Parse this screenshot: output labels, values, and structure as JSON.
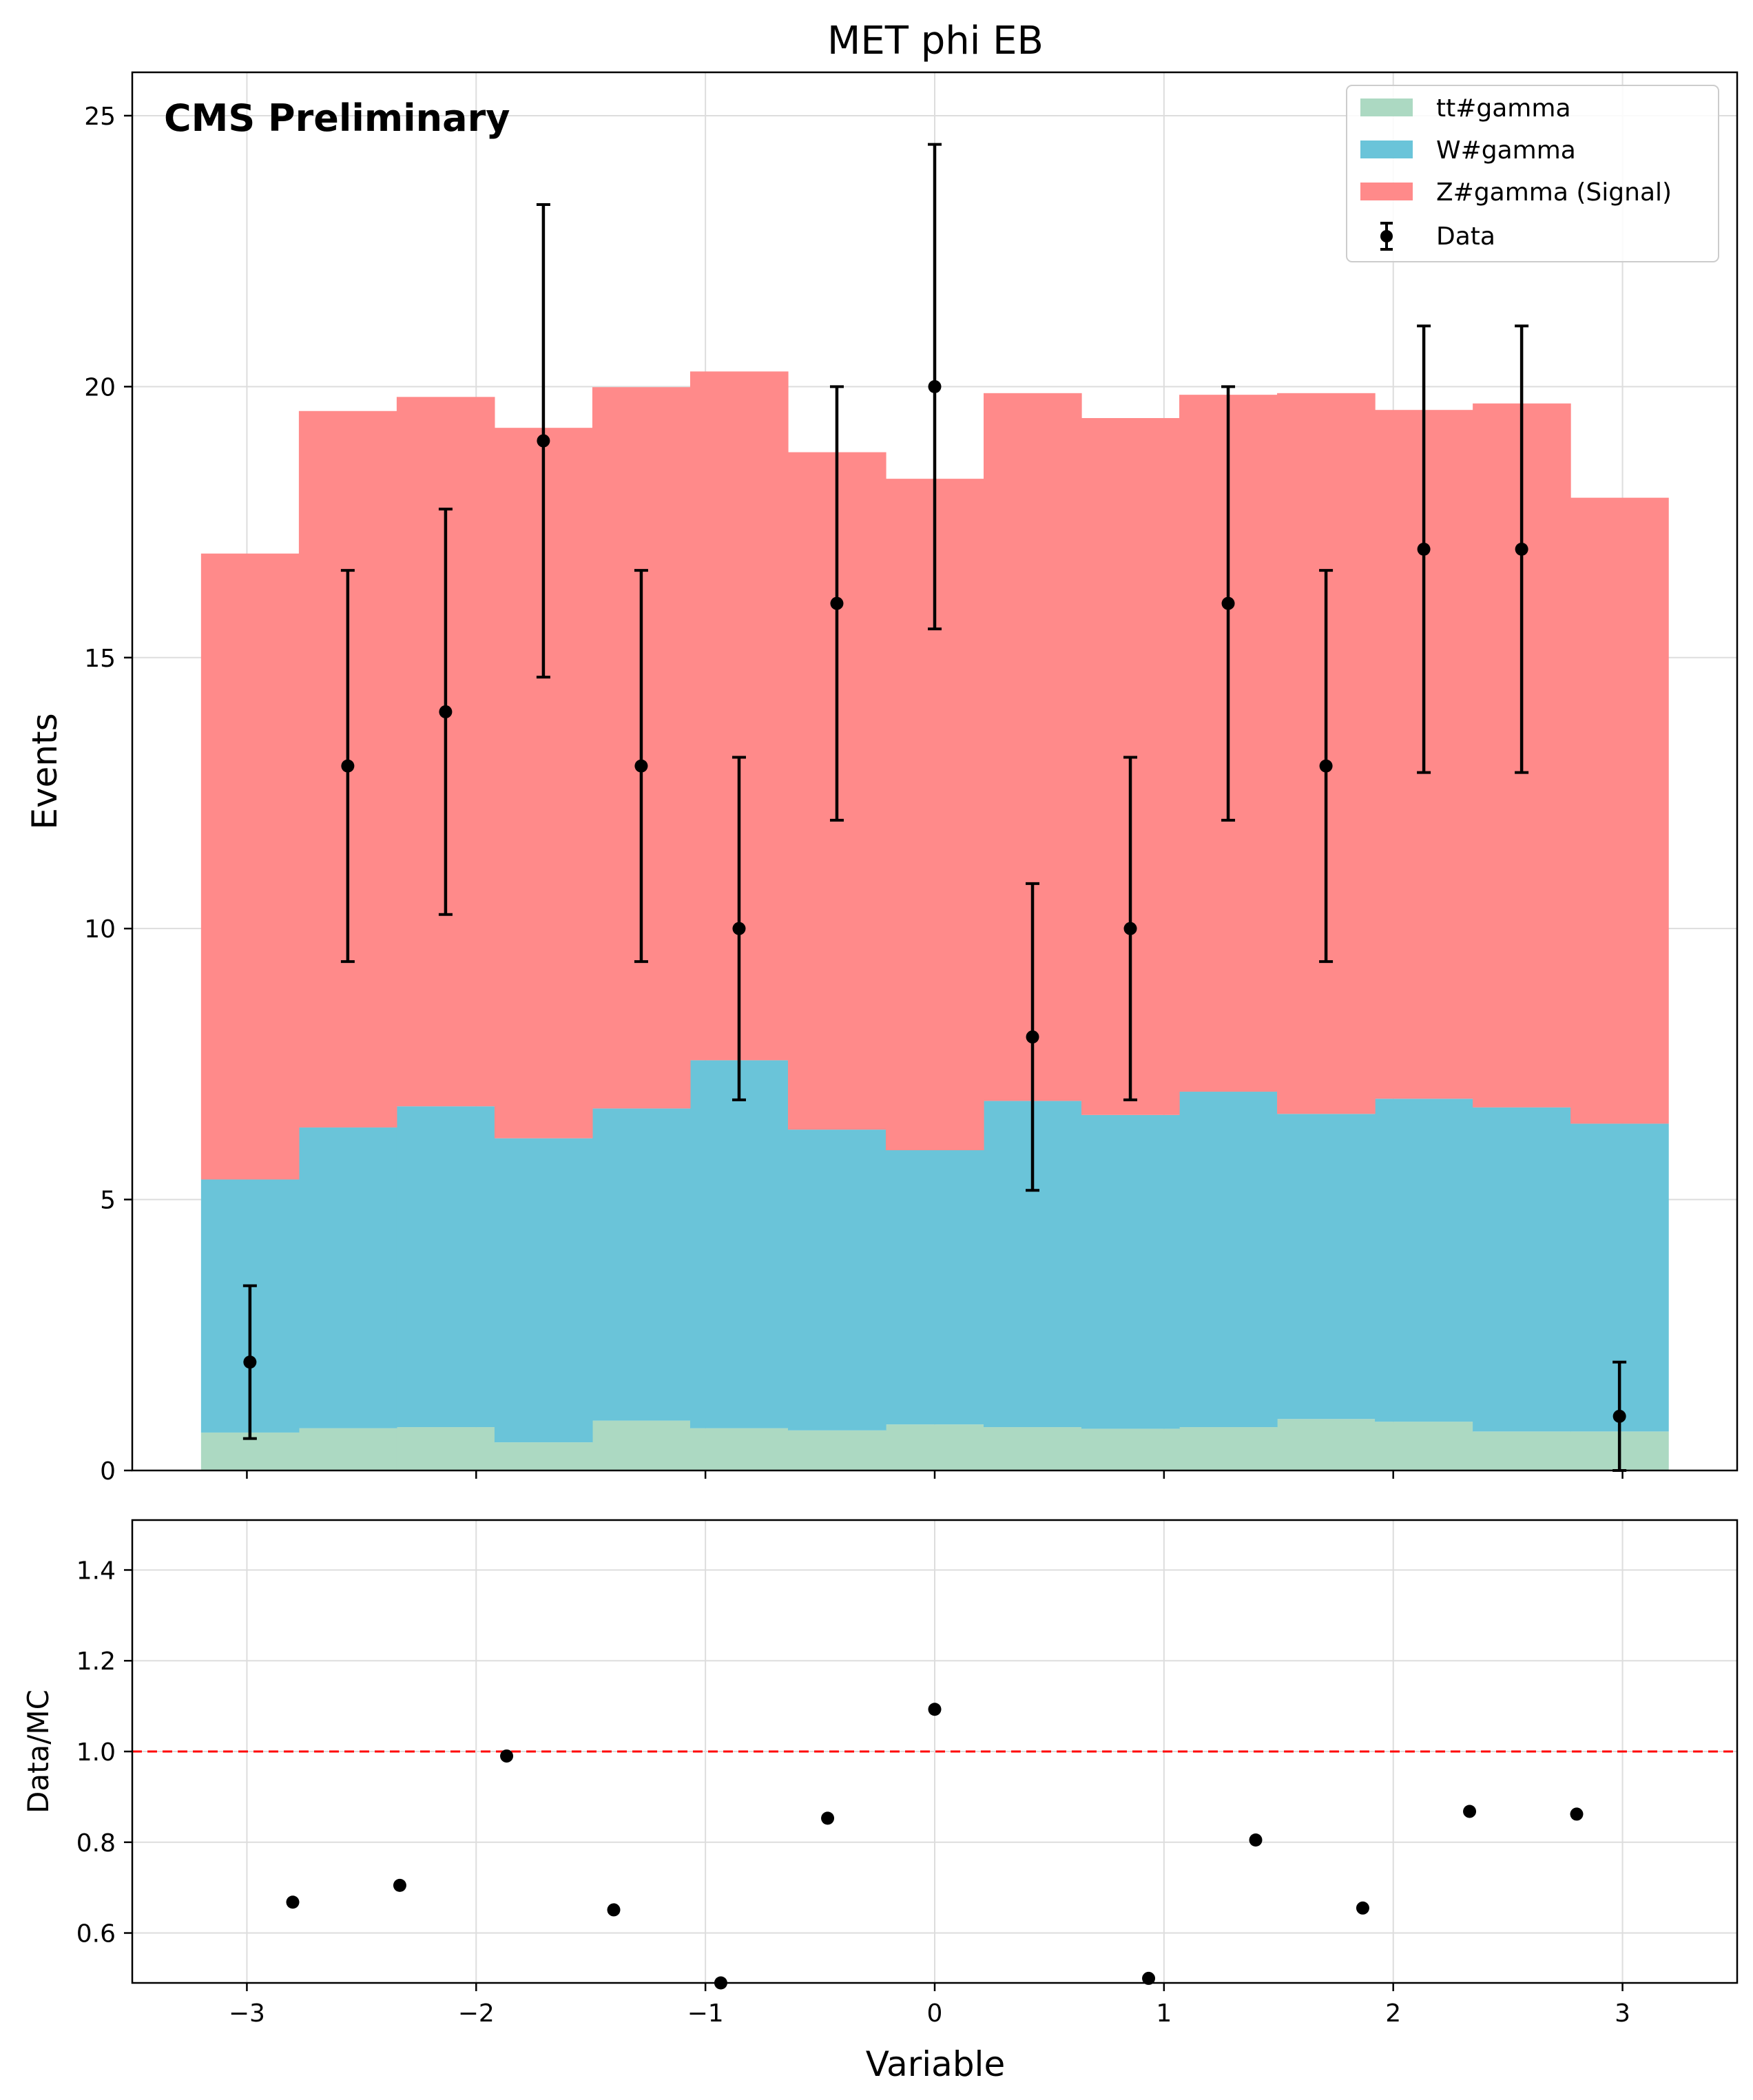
{
  "chart_data": [
    {
      "type": "bar",
      "stacked": true,
      "title": "MET phi EB",
      "annotation": "CMS Preliminary",
      "ylabel": "Events",
      "xlim": [
        -3.5,
        3.5
      ],
      "ylim": [
        0,
        25.8
      ],
      "yticks": [
        0,
        5,
        10,
        15,
        20,
        25
      ],
      "grid": true,
      "legend_position": "top-right",
      "bin_edges": [
        -3.2,
        -2.7733,
        -2.3467,
        -1.92,
        -1.4933,
        -1.0667,
        -0.64,
        -0.2133,
        0.2133,
        0.64,
        1.0667,
        1.4933,
        1.92,
        2.3467,
        2.7733,
        3.2
      ],
      "series": [
        {
          "name": "tt#gamma",
          "color": "#acd9c2",
          "values": [
            0.7,
            0.78,
            0.8,
            0.52,
            0.92,
            0.78,
            0.74,
            0.85,
            0.8,
            0.77,
            0.8,
            0.95,
            0.9,
            0.72,
            0.72
          ]
        },
        {
          "name": "W#gamma",
          "color": "#6ac4d9",
          "values": [
            4.67,
            5.55,
            5.92,
            5.61,
            5.76,
            6.79,
            5.55,
            5.06,
            6.02,
            5.79,
            6.19,
            5.63,
            5.96,
            5.98,
            5.68
          ]
        },
        {
          "name": "Z#gamma (Signal)",
          "color": "#ff8a8a",
          "values": [
            11.55,
            13.22,
            13.09,
            13.11,
            13.31,
            12.71,
            12.5,
            12.39,
            13.06,
            12.86,
            12.86,
            13.3,
            12.71,
            12.99,
            11.55
          ]
        }
      ],
      "data_points": {
        "name": "Data",
        "x": [
          -2.9867,
          -2.56,
          -2.1333,
          -1.7067,
          -1.28,
          -0.8533,
          -0.4267,
          0.0,
          0.4267,
          0.8533,
          1.28,
          1.7067,
          2.1333,
          2.56,
          2.9867
        ],
        "y": [
          2,
          13,
          14,
          19,
          13,
          10,
          16,
          20,
          8,
          10,
          16,
          13,
          17,
          17,
          1
        ],
        "err_low": [
          1.41,
          3.61,
          3.74,
          4.36,
          3.61,
          3.16,
          4.0,
          4.47,
          2.83,
          3.16,
          4.0,
          3.61,
          4.12,
          4.12,
          1.0
        ],
        "err_high": [
          1.41,
          3.61,
          3.74,
          4.36,
          3.61,
          3.16,
          4.0,
          4.47,
          2.83,
          3.16,
          4.0,
          3.61,
          4.12,
          4.12,
          1.0
        ]
      }
    },
    {
      "type": "scatter",
      "xlabel": "Variable",
      "ylabel": "Data/MC",
      "xlim": [
        -3.5,
        3.5
      ],
      "ylim": [
        0.49,
        1.51
      ],
      "xticks": [
        -3,
        -2,
        -1,
        0,
        1,
        2,
        3
      ],
      "yticks": [
        0.6,
        0.8,
        1.0,
        1.2,
        1.4
      ],
      "grid": true,
      "reference_line": {
        "y": 1.0,
        "color": "#ff0000",
        "style": "dashed"
      },
      "x": [
        -2.8,
        -2.333,
        -1.867,
        -1.4,
        -0.933,
        -0.467,
        0.0,
        0.933,
        1.4,
        1.867,
        2.333,
        2.8
      ],
      "y": [
        0.668,
        0.705,
        0.99,
        0.651,
        0.49,
        0.853,
        1.093,
        0.5,
        0.805,
        0.655,
        0.868,
        0.862
      ]
    }
  ],
  "labels": {
    "tick_labels_x": [
      "−3",
      "−2",
      "−1",
      "0",
      "1",
      "2",
      "3"
    ],
    "tick_labels_y_main": [
      "0",
      "5",
      "10",
      "15",
      "20",
      "25"
    ],
    "tick_labels_y_ratio": [
      "0.6",
      "0.8",
      "1.0",
      "1.2",
      "1.4"
    ]
  }
}
